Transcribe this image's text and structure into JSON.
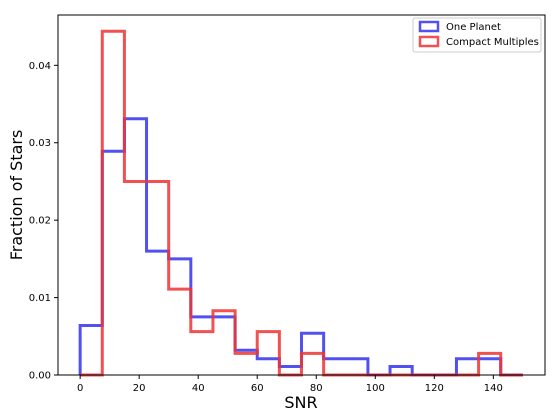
{
  "chart_data": {
    "type": "histogram",
    "xlabel": "SNR",
    "ylabel": "Fraction of Stars",
    "xlim": [
      -7.5,
      157.5
    ],
    "ylim": [
      0,
      0.0465
    ],
    "xticks": [
      0,
      20,
      40,
      60,
      80,
      100,
      120,
      140
    ],
    "xtick_labels": [
      "0",
      "20",
      "40",
      "60",
      "80",
      "100",
      "120",
      "140"
    ],
    "yticks": [
      0,
      0.01,
      0.02,
      0.03,
      0.04
    ],
    "ytick_labels": [
      "0.00",
      "0.01",
      "0.02",
      "0.03",
      "0.04"
    ],
    "bin_edges": [
      0,
      7.5,
      15,
      22.5,
      30,
      37.5,
      45,
      52.5,
      60,
      67.5,
      75,
      82.5,
      90,
      97.5,
      105,
      112.5,
      120,
      127.5,
      135,
      142.5,
      150
    ],
    "grid": false,
    "legend_position": "top-right",
    "series": [
      {
        "name": "One Planet",
        "color": "#3333ee",
        "values": [
          0.0064,
          0.0289,
          0.0331,
          0.016,
          0.015,
          0.0075,
          0.0075,
          0.0032,
          0.0021,
          0.0011,
          0.0054,
          0.0021,
          0.0021,
          0.0,
          0.0011,
          0.0,
          0.0,
          0.0021,
          0.0021,
          0.0
        ]
      },
      {
        "name": "Compact Multiples",
        "color": "#ee3333",
        "values": [
          0.0,
          0.0444,
          0.025,
          0.025,
          0.0111,
          0.0056,
          0.0083,
          0.0028,
          0.0056,
          0.0,
          0.0028,
          0.0,
          0.0,
          0.0,
          0.0,
          0.0,
          0.0,
          0.0,
          0.0028,
          0.0
        ]
      }
    ]
  }
}
